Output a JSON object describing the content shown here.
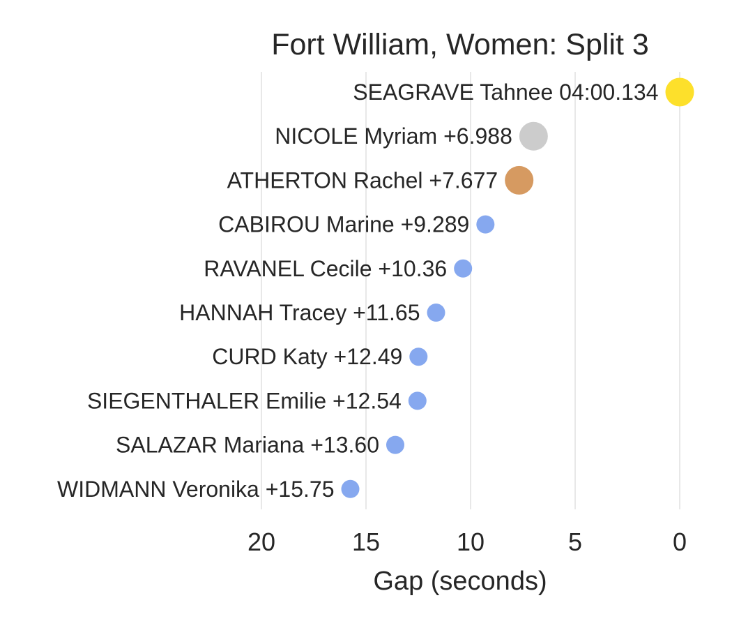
{
  "chart_data": {
    "type": "scatter",
    "title": "Fort William, Women: Split 3",
    "xlabel": "Gap (seconds)",
    "ylabel": "",
    "xlim": [
      20,
      0
    ],
    "x_reversed": true,
    "grid": "vertical",
    "xticks": [
      20,
      15,
      10,
      5,
      0
    ],
    "xtick_labels": [
      "20",
      "15",
      "10",
      "5",
      "0"
    ],
    "points": [
      {
        "label": "SEAGRAVE Tahnee 04:00.134",
        "gap": 0.0,
        "color": "#fde02b",
        "rank": 1
      },
      {
        "label": "NICOLE Myriam +6.988",
        "gap": 6.988,
        "color": "#cccccc",
        "rank": 2
      },
      {
        "label": "ATHERTON Rachel +7.677",
        "gap": 7.677,
        "color": "#d69a61",
        "rank": 3
      },
      {
        "label": "CABIROU Marine +9.289",
        "gap": 9.289,
        "color": "#86a8ef",
        "rank": 4
      },
      {
        "label": "RAVANEL Cecile +10.36",
        "gap": 10.36,
        "color": "#86a8ef",
        "rank": 5
      },
      {
        "label": "HANNAH Tracey +11.65",
        "gap": 11.65,
        "color": "#86a8ef",
        "rank": 6
      },
      {
        "label": "CURD Katy +12.49",
        "gap": 12.49,
        "color": "#86a8ef",
        "rank": 7
      },
      {
        "label": "SIEGENTHALER Emilie +12.54",
        "gap": 12.54,
        "color": "#86a8ef",
        "rank": 8
      },
      {
        "label": "SALAZAR Mariana +13.60",
        "gap": 13.6,
        "color": "#86a8ef",
        "rank": 9
      },
      {
        "label": "WIDMANN Veronika +15.75",
        "gap": 15.75,
        "color": "#86a8ef",
        "rank": 10
      }
    ]
  }
}
